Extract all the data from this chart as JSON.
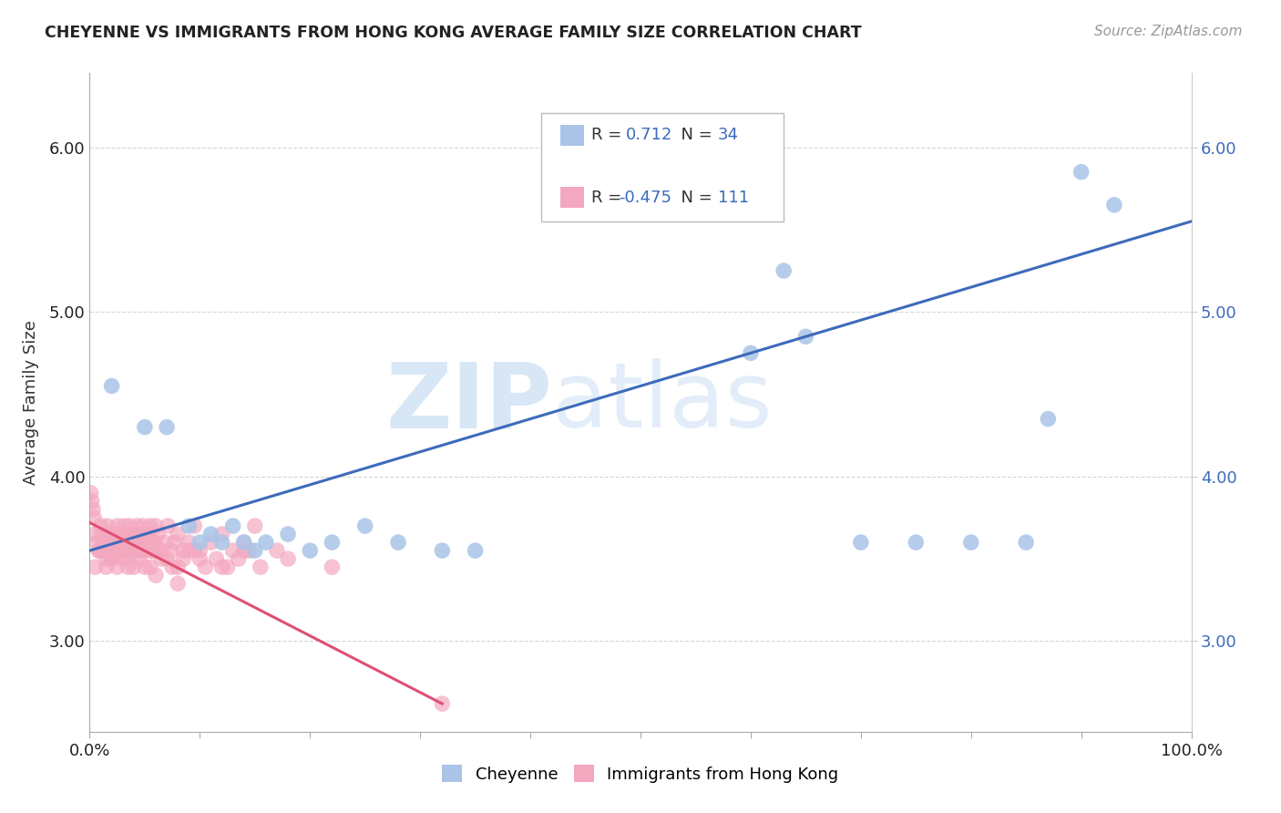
{
  "title": "CHEYENNE VS IMMIGRANTS FROM HONG KONG AVERAGE FAMILY SIZE CORRELATION CHART",
  "source": "Source: ZipAtlas.com",
  "ylabel": "Average Family Size",
  "xlim": [
    0,
    1.0
  ],
  "ylim": [
    2.45,
    6.45
  ],
  "yticks": [
    3.0,
    4.0,
    5.0,
    6.0
  ],
  "xticks": [
    0.0,
    0.1,
    0.2,
    0.3,
    0.4,
    0.5,
    0.6,
    0.7,
    0.8,
    0.9,
    1.0
  ],
  "legend_r_blue": "0.712",
  "legend_n_blue": "34",
  "legend_r_pink": "-0.475",
  "legend_n_pink": "111",
  "blue_color": "#aac4e8",
  "pink_color": "#f4a8c0",
  "trend_blue": "#3d6bba",
  "trend_pink": "#e05070",
  "blue_scatter_x": [
    0.02,
    0.05,
    0.07,
    0.09,
    0.1,
    0.11,
    0.12,
    0.13,
    0.14,
    0.15,
    0.16,
    0.18,
    0.2,
    0.22,
    0.25,
    0.28,
    0.32,
    0.35,
    0.6,
    0.63,
    0.65,
    0.7,
    0.75,
    0.8,
    0.85,
    0.87,
    0.9,
    0.93
  ],
  "blue_scatter_y": [
    4.55,
    4.3,
    4.3,
    3.7,
    3.6,
    3.65,
    3.6,
    3.7,
    3.6,
    3.55,
    3.6,
    3.65,
    3.55,
    3.6,
    3.7,
    3.6,
    3.55,
    3.55,
    4.75,
    5.25,
    4.85,
    3.6,
    3.6,
    3.6,
    3.6,
    4.35,
    5.85,
    5.65
  ],
  "blue_trend_x": [
    0.0,
    1.0
  ],
  "blue_trend_y": [
    3.55,
    5.55
  ],
  "pink_scatter_x": [
    0.005,
    0.008,
    0.01,
    0.012,
    0.015,
    0.018,
    0.02,
    0.022,
    0.025,
    0.028,
    0.03,
    0.032,
    0.034,
    0.036,
    0.038,
    0.04,
    0.042,
    0.044,
    0.046,
    0.048,
    0.05,
    0.052,
    0.054,
    0.056,
    0.058,
    0.06,
    0.003,
    0.004,
    0.002,
    0.001,
    0.007,
    0.009,
    0.011,
    0.013,
    0.016,
    0.019,
    0.021,
    0.023,
    0.026,
    0.029,
    0.031,
    0.033,
    0.035,
    0.037,
    0.039,
    0.041,
    0.043,
    0.045,
    0.047,
    0.049,
    0.051,
    0.053,
    0.055,
    0.057,
    0.059,
    0.062,
    0.065,
    0.068,
    0.071,
    0.074,
    0.077,
    0.08,
    0.085,
    0.09,
    0.095,
    0.1,
    0.11,
    0.12,
    0.13,
    0.14,
    0.15,
    0.17,
    0.02,
    0.015,
    0.025,
    0.03,
    0.035,
    0.04,
    0.045,
    0.05,
    0.06,
    0.07,
    0.08,
    0.09,
    0.1,
    0.12,
    0.14,
    0.18,
    0.22,
    0.08,
    0.06,
    0.04,
    0.02,
    0.01,
    0.005,
    0.015,
    0.025,
    0.035,
    0.045,
    0.055,
    0.065,
    0.075,
    0.085,
    0.095,
    0.105,
    0.115,
    0.125,
    0.135,
    0.145,
    0.155,
    0.32
  ],
  "pink_scatter_y": [
    3.65,
    3.55,
    3.7,
    3.6,
    3.55,
    3.65,
    3.6,
    3.55,
    3.7,
    3.6,
    3.65,
    3.55,
    3.6,
    3.7,
    3.55,
    3.6,
    3.65,
    3.55,
    3.6,
    3.7,
    3.55,
    3.6,
    3.65,
    3.55,
    3.6,
    3.7,
    3.8,
    3.75,
    3.85,
    3.9,
    3.6,
    3.55,
    3.65,
    3.6,
    3.7,
    3.55,
    3.6,
    3.65,
    3.55,
    3.6,
    3.7,
    3.55,
    3.6,
    3.65,
    3.55,
    3.6,
    3.7,
    3.55,
    3.6,
    3.65,
    3.55,
    3.6,
    3.7,
    3.55,
    3.6,
    3.65,
    3.55,
    3.6,
    3.7,
    3.55,
    3.6,
    3.65,
    3.55,
    3.6,
    3.7,
    3.55,
    3.6,
    3.65,
    3.55,
    3.6,
    3.7,
    3.55,
    3.5,
    3.45,
    3.55,
    3.5,
    3.45,
    3.55,
    3.5,
    3.45,
    3.55,
    3.5,
    3.45,
    3.55,
    3.5,
    3.45,
    3.55,
    3.5,
    3.45,
    3.35,
    3.4,
    3.45,
    3.5,
    3.55,
    3.45,
    3.5,
    3.45,
    3.5,
    3.55,
    3.45,
    3.5,
    3.45,
    3.5,
    3.55,
    3.45,
    3.5,
    3.45,
    3.5,
    3.55,
    3.45,
    2.62
  ],
  "pink_trend_x": [
    0.0,
    0.32
  ],
  "pink_trend_y": [
    3.72,
    2.62
  ],
  "watermark_zip": "ZIP",
  "watermark_atlas": "atlas"
}
